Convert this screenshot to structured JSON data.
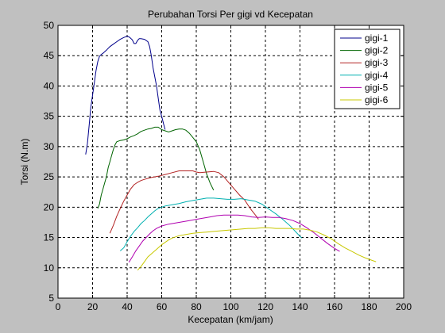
{
  "chart_data": {
    "type": "line",
    "title": "Perubahan Torsi Per gigi vd Kecepatan",
    "xlabel": "Kecepatan (km/jam)",
    "ylabel": "Torsi (N.m)",
    "xlim": [
      0,
      200
    ],
    "ylim": [
      5,
      50
    ],
    "xticks": [
      0,
      20,
      40,
      60,
      80,
      100,
      120,
      140,
      160,
      180,
      200
    ],
    "yticks": [
      5,
      10,
      15,
      20,
      25,
      30,
      35,
      40,
      45,
      50
    ],
    "grid": true,
    "legend_position": "top-right",
    "series": [
      {
        "name": "gigi-1",
        "color": "#00008b",
        "x": [
          16,
          17,
          18,
          19,
          20,
          21,
          22,
          23,
          24,
          25,
          26,
          28,
          30,
          32,
          34,
          36,
          38,
          40,
          41,
          42,
          43,
          44,
          45,
          46,
          47,
          48,
          50,
          52,
          53,
          54,
          55,
          56,
          57,
          58,
          59,
          60,
          61,
          62
        ],
        "y": [
          28.7,
          30.5,
          33.5,
          36.5,
          38.5,
          40.5,
          42.5,
          44,
          44.9,
          45.2,
          45.4,
          45.9,
          46.5,
          46.9,
          47.3,
          47.7,
          48.0,
          48.2,
          48.1,
          47.9,
          47.6,
          47.0,
          47.0,
          47.5,
          47.8,
          47.8,
          47.7,
          47.3,
          46.5,
          45.0,
          43.0,
          41.5,
          40.0,
          38.0,
          36.0,
          35.0,
          33.8,
          32.8
        ]
      },
      {
        "name": "gigi-2",
        "color": "#006400",
        "x": [
          23,
          24,
          25,
          26,
          27,
          28,
          29,
          30,
          31,
          32,
          33,
          34,
          36,
          38,
          40,
          42,
          44,
          46,
          48,
          50,
          52,
          54,
          56,
          58,
          60,
          62,
          64,
          66,
          68,
          70,
          72,
          74,
          76,
          78,
          80,
          82,
          84,
          86,
          88,
          90
        ],
        "y": [
          19.8,
          20.5,
          22,
          23,
          24,
          25,
          26.5,
          27.5,
          28.5,
          29.5,
          30.3,
          30.8,
          31.0,
          31.1,
          31.3,
          31.6,
          31.8,
          32.1,
          32.5,
          32.7,
          32.9,
          33.0,
          33.2,
          33.2,
          32.8,
          32.6,
          32.4,
          32.6,
          32.8,
          32.9,
          32.9,
          32.7,
          32.2,
          31.5,
          30.8,
          29.5,
          27.5,
          25.5,
          24.0,
          22.8
        ]
      },
      {
        "name": "gigi-3",
        "color": "#b22222",
        "x": [
          30,
          32,
          34,
          36,
          38,
          40,
          42,
          44,
          46,
          48,
          50,
          54,
          58,
          62,
          66,
          70,
          74,
          78,
          80,
          82,
          86,
          90,
          93,
          96,
          99,
          102,
          105,
          108,
          110,
          112,
          114,
          116
        ],
        "y": [
          15.7,
          17.0,
          18.5,
          19.8,
          21.0,
          22.0,
          23.0,
          23.7,
          24.1,
          24.4,
          24.6,
          24.9,
          25.1,
          25.4,
          25.7,
          26.0,
          26.0,
          26.0,
          25.8,
          25.7,
          25.8,
          25.9,
          25.7,
          25.0,
          24.0,
          23.0,
          22.0,
          21.2,
          20.3,
          19.5,
          18.8,
          18.0
        ]
      },
      {
        "name": "gigi-4",
        "color": "#00b0b0",
        "x": [
          36,
          38,
          40,
          42,
          44,
          46,
          48,
          50,
          52,
          54,
          56,
          58,
          60,
          62,
          66,
          70,
          74,
          78,
          82,
          86,
          90,
          94,
          98,
          102,
          106,
          110,
          114,
          118,
          122,
          126,
          130,
          134,
          138,
          141
        ],
        "y": [
          12.8,
          13.3,
          14.3,
          15.2,
          16.0,
          16.6,
          17.3,
          17.8,
          18.4,
          18.9,
          19.4,
          19.8,
          20.0,
          20.2,
          20.4,
          20.6,
          20.9,
          21.1,
          21.3,
          21.5,
          21.5,
          21.4,
          21.3,
          21.3,
          21.4,
          21.2,
          21.0,
          20.5,
          19.7,
          18.9,
          18.0,
          17.0,
          15.8,
          14.9
        ]
      },
      {
        "name": "gigi-5",
        "color": "#b000b0",
        "x": [
          41,
          43,
          45,
          47,
          49,
          51,
          53,
          55,
          57,
          60,
          64,
          68,
          72,
          76,
          80,
          84,
          88,
          92,
          96,
          100,
          104,
          108,
          112,
          116,
          120,
          124,
          128,
          132,
          136,
          140,
          144,
          148,
          152,
          156,
          160,
          163
        ],
        "y": [
          10.9,
          11.8,
          12.8,
          13.6,
          14.4,
          15.0,
          15.6,
          16.1,
          16.5,
          16.9,
          17.2,
          17.4,
          17.6,
          17.8,
          18.0,
          18.2,
          18.4,
          18.6,
          18.7,
          18.7,
          18.7,
          18.6,
          18.4,
          18.3,
          18.4,
          18.3,
          18.3,
          18.1,
          17.8,
          17.3,
          16.6,
          15.8,
          14.9,
          14.0,
          13.2,
          12.7
        ]
      },
      {
        "name": "gigi-6",
        "color": "#c8c800",
        "x": [
          46,
          48,
          50,
          52,
          54,
          56,
          58,
          60,
          62,
          64,
          66,
          68,
          70,
          74,
          78,
          82,
          86,
          90,
          94,
          98,
          102,
          106,
          110,
          114,
          118,
          122,
          126,
          130,
          134,
          138,
          142,
          146,
          150,
          154,
          158,
          162,
          166,
          170,
          174,
          178,
          182,
          184
        ],
        "y": [
          9.6,
          10.2,
          11.0,
          11.8,
          12.3,
          12.8,
          13.3,
          13.8,
          14.2,
          14.6,
          14.9,
          15.1,
          15.3,
          15.5,
          15.7,
          15.8,
          15.9,
          16.0,
          16.1,
          16.2,
          16.3,
          16.4,
          16.5,
          16.5,
          16.6,
          16.6,
          16.5,
          16.5,
          16.5,
          16.4,
          16.4,
          16.2,
          15.9,
          15.4,
          14.8,
          14.0,
          13.3,
          12.7,
          12.1,
          11.6,
          11.2,
          11.0
        ]
      }
    ]
  }
}
